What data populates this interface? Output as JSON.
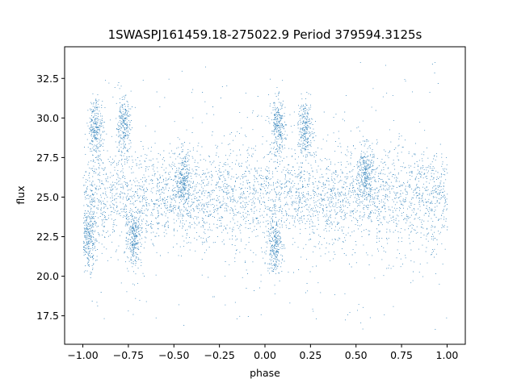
{
  "chart_data": {
    "type": "scatter",
    "title": "1SWASPJ161459.18-275022.9 Period 379594.3125s",
    "xlabel": "phase",
    "ylabel": "flux",
    "xlim": [
      -1.1,
      1.1
    ],
    "ylim": [
      15.7,
      34.5
    ],
    "xticks": [
      -1.0,
      -0.75,
      -0.5,
      -0.25,
      0.0,
      0.25,
      0.5,
      0.75,
      1.0
    ],
    "xtick_labels": [
      "−1.00",
      "−0.75",
      "−0.50",
      "−0.25",
      "0.00",
      "0.25",
      "0.50",
      "0.75",
      "1.00"
    ],
    "yticks": [
      17.5,
      20.0,
      22.5,
      25.0,
      27.5,
      30.0,
      32.5
    ],
    "ytick_labels": [
      "17.5",
      "20.0",
      "22.5",
      "25.0",
      "27.5",
      "30.0",
      "32.5"
    ],
    "grid": false,
    "marker_color": "#1f77b4",
    "series": [
      {
        "x_range": [
          -1.0,
          1.0
        ],
        "y_center": 25.0,
        "y_typical_range": [
          22.0,
          28.0
        ],
        "y_extreme_range": [
          16.5,
          33.5
        ],
        "clusters": [
          {
            "x": -0.97,
            "y": 22.3
          },
          {
            "x": -0.93,
            "y": 29.4
          },
          {
            "x": -0.78,
            "y": 29.5
          },
          {
            "x": -0.72,
            "y": 22.5
          },
          {
            "x": -0.45,
            "y": 26.0
          },
          {
            "x": 0.07,
            "y": 29.4
          },
          {
            "x": 0.22,
            "y": 29.3
          },
          {
            "x": 0.05,
            "y": 22.0
          },
          {
            "x": 0.55,
            "y": 26.5
          }
        ]
      }
    ]
  }
}
